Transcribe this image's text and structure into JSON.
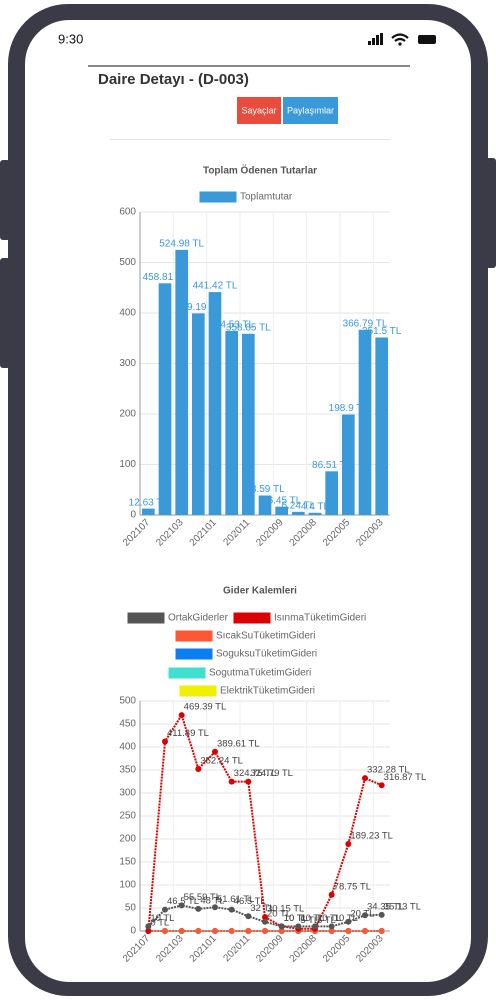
{
  "status_bar": {
    "time": "9:30"
  },
  "page": {
    "title": "Daire Detayı - (D-003)",
    "buttons": [
      "Sayaçlar",
      "Paylaşımlar"
    ]
  },
  "chart_data": [
    {
      "type": "bar",
      "title": "Toplam Ödenen Tutarlar",
      "categories": [
        "202107",
        null,
        "202103",
        null,
        "202101",
        null,
        "202011",
        null,
        "202009",
        null,
        "202008",
        null,
        "202005",
        null,
        "202003"
      ],
      "series": [
        {
          "name": "Toplamtutar",
          "color": "#3a9ad9",
          "values": [
            12.63,
            458.81,
            524.98,
            399.19,
            441.42,
            364.53,
            358.85,
            38.59,
            16.45,
            6.24,
            4.4,
            86.51,
            198.9,
            366.79,
            351.5
          ],
          "value_labels": [
            "12.63 TL",
            "458.81 TL",
            "524.98 TL",
            "399.19 TL",
            "441.42 TL",
            "364.53 TL",
            "358.85 TL",
            "38.59 TL",
            "16.45 TL",
            "6.24 TL",
            "4.4 TL",
            "86.51 TL",
            "198.9 TL",
            "366.79 TL",
            "351.5 TL"
          ]
        }
      ],
      "ylim": [
        0,
        600
      ],
      "yticks": [
        0,
        100,
        200,
        300,
        400,
        500,
        600
      ],
      "grid": true
    },
    {
      "type": "line",
      "title": "Gider Kalemleri",
      "categories": [
        "202107",
        null,
        "202103",
        null,
        "202101",
        null,
        "202011",
        null,
        "202009",
        null,
        "202008",
        null,
        "202005",
        null,
        "202003"
      ],
      "series": [
        {
          "name": "OrtakGiderler",
          "color": "#555555",
          "values": [
            10,
            46.5,
            55.59,
            48,
            51.61,
            46.5,
            32,
            20,
            10,
            10,
            10,
            10,
            20,
            34.35,
            35.13
          ],
          "value_labels": [
            "10 TL",
            "46.5 TL",
            "55.59 TL",
            "48 TL",
            "51.61 TL",
            "46.5 TL",
            "32 TL",
            "20 TL",
            "10 TL",
            "10 TL",
            "10 TL",
            "10 TL",
            "20 TL",
            "34.35 TL",
            "35.13 TL"
          ]
        },
        {
          "name": "IsınmaTüketimGideri",
          "color": "#dd0000",
          "values": [
            0,
            411.89,
            469.39,
            352.24,
            389.61,
            324.75,
            324.79,
            30.15,
            10,
            5,
            5,
            78.75,
            189.23,
            332.28,
            316.87
          ],
          "value_labels": [
            "0 TL",
            "411.89 TL",
            "469.39 TL",
            "352.24 TL",
            "389.61 TL",
            "324.75 TL",
            "324.79 TL",
            "30.15 TL",
            "10 TL",
            "5 TL",
            "5 TL",
            "78.75 TL",
            "189.23 TL",
            "332.28 TL",
            "316.87 TL"
          ]
        },
        {
          "name": "SıcakSuTüketimGideri",
          "color": "#ff5733",
          "values": [
            0,
            0,
            0,
            0,
            0,
            0,
            0,
            0,
            0,
            0,
            0,
            0,
            0,
            0,
            0
          ]
        },
        {
          "name": "SoguksuTüketimGideri",
          "color": "#0a7ff5",
          "values": [
            0,
            0,
            0,
            0,
            0,
            0,
            0,
            0,
            0,
            0,
            0,
            0,
            0,
            0,
            0
          ]
        },
        {
          "name": "SogutmaTüketimGideri",
          "color": "#40e0d0",
          "values": [
            0,
            0,
            0,
            0,
            0,
            0,
            0,
            0,
            0,
            0,
            0,
            0,
            0,
            0,
            0
          ]
        },
        {
          "name": "ElektrikTüketimGideri",
          "color": "#f0f000",
          "values": [
            0,
            0,
            0,
            0,
            0,
            0,
            0,
            0,
            0,
            0,
            0,
            0,
            0,
            0,
            0
          ]
        }
      ],
      "ylim": [
        0,
        500
      ],
      "yticks": [
        0,
        50,
        100,
        150,
        200,
        250,
        300,
        350,
        400,
        450,
        500
      ],
      "grid": true
    }
  ]
}
